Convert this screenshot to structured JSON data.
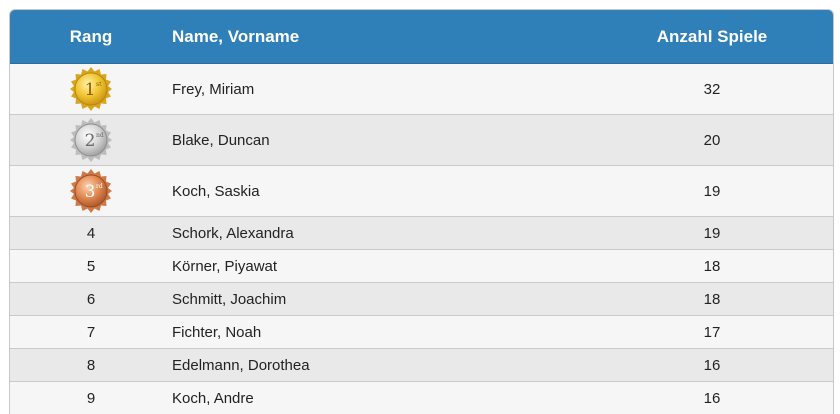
{
  "table": {
    "headers": {
      "rank": "Rang",
      "name": "Name, Vorname",
      "games": "Anzahl Spiele"
    },
    "medal_rows": [
      {
        "rank_numeral": "1",
        "rank_suffix": "st",
        "name": "Frey, Miriam",
        "games": "32",
        "medal": "gold-medal-icon",
        "color": "#e6b422"
      },
      {
        "rank_numeral": "2",
        "rank_suffix": "nd",
        "name": "Blake, Duncan",
        "games": "20",
        "medal": "silver-medal-icon",
        "color": "#bfbfbf"
      },
      {
        "rank_numeral": "3",
        "rank_suffix": "rd",
        "name": "Koch, Saskia",
        "games": "19",
        "medal": "bronze-medal-icon",
        "color": "#d9804f"
      }
    ],
    "rows": [
      {
        "rank": "4",
        "name": "Schork, Alexandra",
        "games": "19"
      },
      {
        "rank": "5",
        "name": "Körner, Piyawat",
        "games": "18"
      },
      {
        "rank": "6",
        "name": "Schmitt, Joachim",
        "games": "18"
      },
      {
        "rank": "7",
        "name": "Fichter, Noah",
        "games": "17"
      },
      {
        "rank": "8",
        "name": "Edelmann, Dorothea",
        "games": "16"
      },
      {
        "rank": "9",
        "name": "Koch, Andre",
        "games": "16"
      }
    ]
  },
  "colors": {
    "header_bg": "#2f7fb8",
    "header_text": "#ffffff"
  }
}
